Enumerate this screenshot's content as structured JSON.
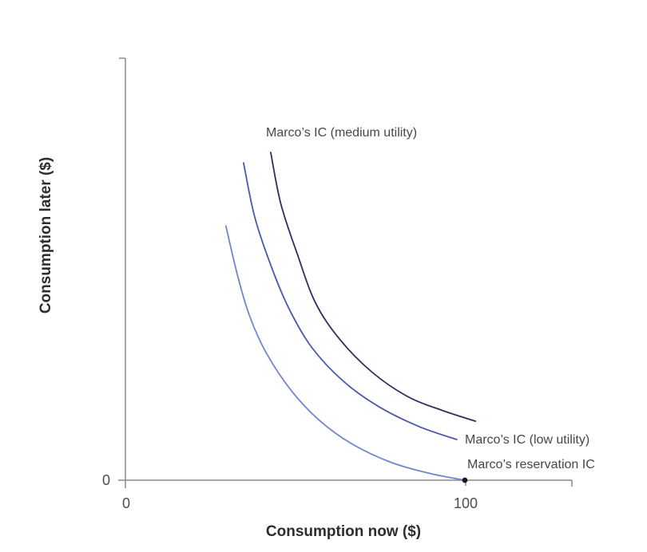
{
  "chart_data": {
    "type": "line",
    "title": "",
    "xlabel": "Consumption now ($)",
    "ylabel": "Consumption later ($)",
    "xlim": [
      0,
      131.5
    ],
    "ylim": [
      0,
      124.5
    ],
    "grid": false,
    "legend_position": "inline-annotations",
    "x_ticks": [
      {
        "value": 0,
        "label": "0"
      },
      {
        "value": 100,
        "label": "100"
      }
    ],
    "y_ticks": [
      {
        "value": 0,
        "label": "0"
      }
    ],
    "series": [
      {
        "name": "Marco’s IC (medium utility)",
        "color": "#2a3162",
        "points": [
          [
            42.8,
            96.7
          ],
          [
            45.8,
            81.5
          ],
          [
            50.6,
            66.8
          ],
          [
            56.0,
            52.3
          ],
          [
            63.1,
            41.6
          ],
          [
            72.5,
            32.0
          ],
          [
            83.1,
            24.7
          ],
          [
            93.6,
            20.5
          ],
          [
            103.1,
            17.4
          ]
        ]
      },
      {
        "name": "Marco’s IC (low utility)",
        "color": "#4c58ae",
        "points": [
          [
            34.8,
            93.6
          ],
          [
            38.0,
            78.0
          ],
          [
            42.6,
            64.0
          ],
          [
            48.0,
            51.0
          ],
          [
            54.8,
            39.3
          ],
          [
            64.2,
            29.2
          ],
          [
            74.8,
            21.6
          ],
          [
            86.6,
            15.8
          ],
          [
            97.6,
            12.0
          ]
        ]
      },
      {
        "name": "Marco’s reservation IC",
        "color": "#7384cc",
        "points": [
          [
            29.6,
            75.0
          ],
          [
            33.0,
            60.5
          ],
          [
            36.5,
            48.7
          ],
          [
            41.5,
            37.5
          ],
          [
            48.9,
            26.4
          ],
          [
            57.2,
            17.6
          ],
          [
            66.6,
            10.8
          ],
          [
            78.4,
            5.2
          ],
          [
            90.1,
            1.9
          ],
          [
            100.0,
            0.0
          ]
        ]
      }
    ],
    "point_marker": {
      "x": 100,
      "y": 0,
      "color": "#1a1a1a"
    }
  },
  "axis": {
    "color": "#8a8a8a",
    "tick_label_color": "#4d4d4d",
    "title_color": "#2d2d2d"
  }
}
